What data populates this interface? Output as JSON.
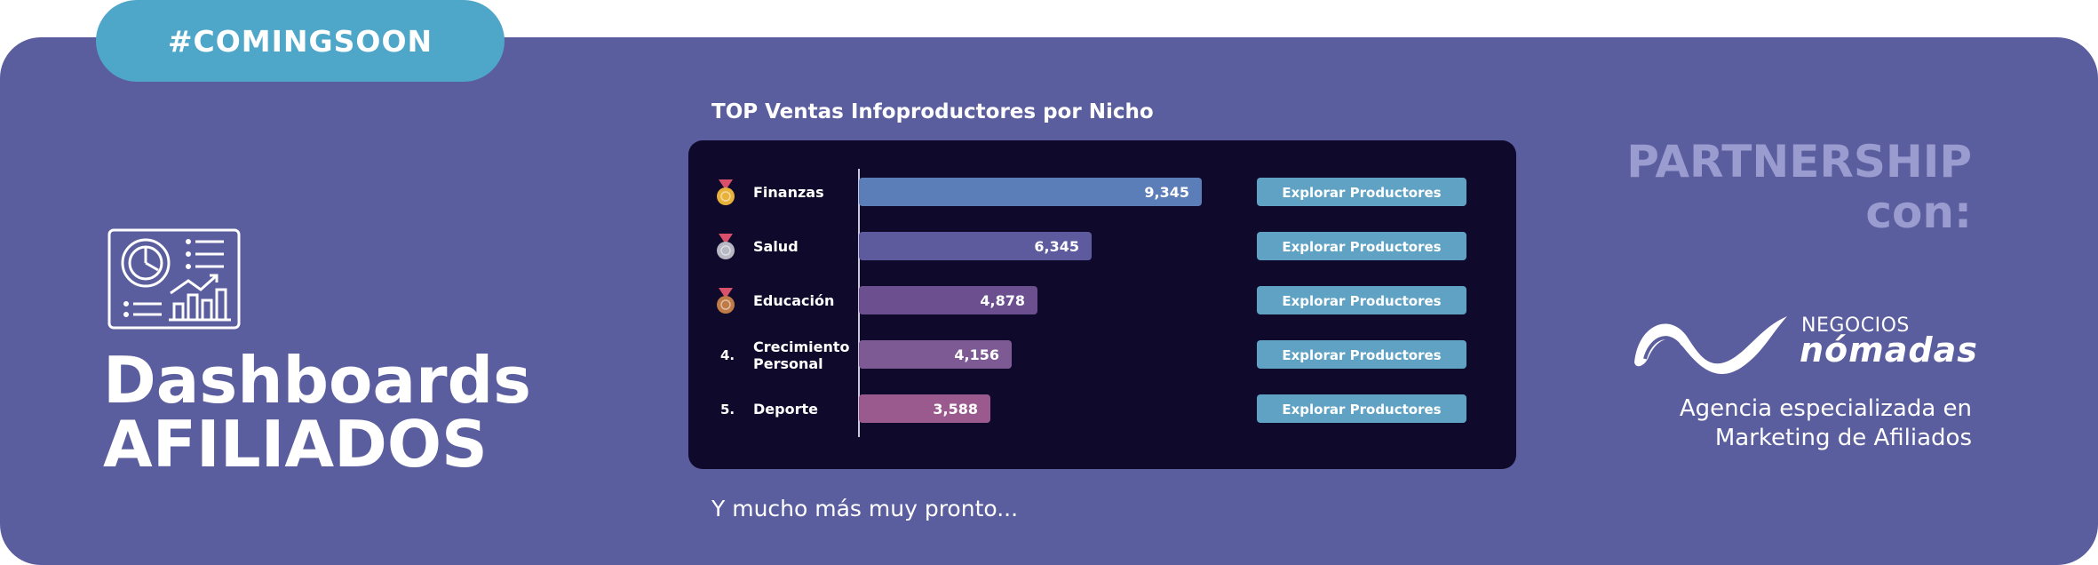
{
  "badge": {
    "label": "#COMINGSOON"
  },
  "hero": {
    "title_line1": "Dashboards",
    "title_line2": "AFILIADOS",
    "icon": "dashboard-icon"
  },
  "chart_title": "TOP Ventas Infoproductores por Nicho",
  "chart_data": {
    "type": "bar",
    "orientation": "horizontal",
    "categories": [
      "Finanzas",
      "Salud",
      "Educación",
      "Crecimiento Personal",
      "Deporte"
    ],
    "category_lines": [
      [
        "Finanzas"
      ],
      [
        "Salud"
      ],
      [
        "Educación"
      ],
      [
        "Crecimiento",
        "Personal"
      ],
      [
        "Deporte"
      ]
    ],
    "ranks": [
      "gold-medal-icon",
      "silver-medal-icon",
      "bronze-medal-icon",
      "4.",
      "5."
    ],
    "values": [
      9345,
      6345,
      4878,
      4156,
      3588
    ],
    "value_labels": [
      "9,345",
      "6,345",
      "4,878",
      "4,156",
      "3,588"
    ],
    "bar_colors": [
      "#5b7db8",
      "#5d5a9e",
      "#6b4f8e",
      "#7d5a94",
      "#9b5a8e"
    ],
    "xlim": [
      0,
      9345
    ]
  },
  "row_button_label": "Explorar Productores",
  "footnote": "Y mucho más muy pronto...",
  "partnership": {
    "line1": "PARTNERSHIP",
    "line2": "con:"
  },
  "partner_logo": {
    "line1": "NEGOCIOS",
    "line2": "nómadas"
  },
  "agency": {
    "line1": "Agencia especializada en",
    "line2": "Marketing de Afiliados"
  },
  "colors": {
    "background": "#5b5e9e",
    "badge": "#4ea7c9",
    "panel": "#0f0a2b",
    "button": "#5fa2c4",
    "partnership": "#9a9cd0"
  }
}
